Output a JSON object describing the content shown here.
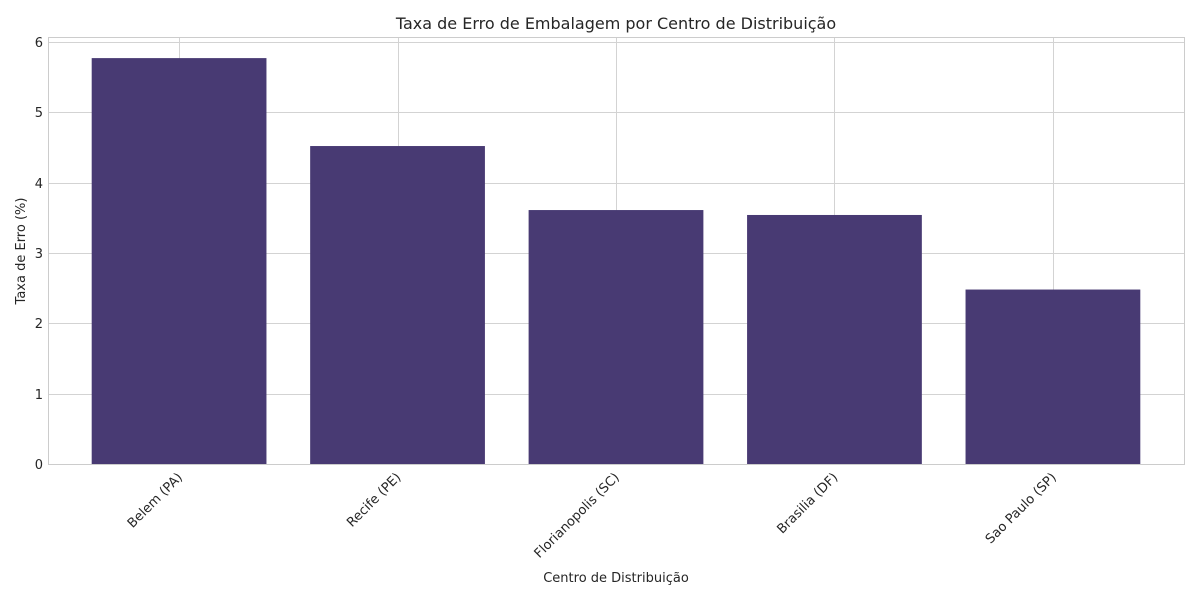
{
  "chart_data": {
    "type": "bar",
    "title": "Taxa de Erro de Embalagem por Centro de Distribuição",
    "xlabel": "Centro de Distribuição",
    "ylabel": "Taxa de Erro (%)",
    "categories": [
      "Belem (PA)",
      "Recife (PE)",
      "Florianopolis (SC)",
      "Brasilia (DF)",
      "Sao Paulo (SP)"
    ],
    "values": [
      5.77,
      4.52,
      3.61,
      3.54,
      2.48
    ],
    "ylim": [
      0,
      6.07
    ],
    "yticks": [
      0,
      1,
      2,
      3,
      4,
      5,
      6
    ],
    "grid": true,
    "bar_color": "#483a73"
  }
}
